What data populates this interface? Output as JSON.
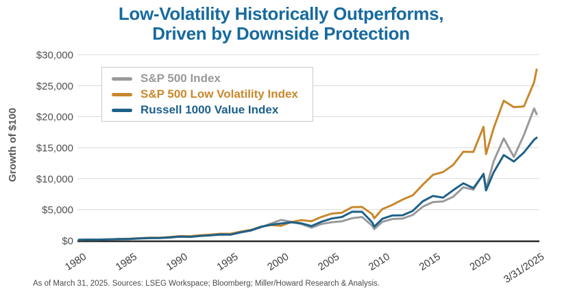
{
  "title": {
    "line1": "Low-Volatility Historically Outperforms,",
    "line2": "Driven by Downside Protection"
  },
  "footnote": "As of March 31, 2025. Sources: LSEG Workspace; Bloomberg; Miller/Howard Research & Analysis.",
  "colors": {
    "title": "#176a9f",
    "axis_line": "#29292b",
    "gridline": "#d9dadb",
    "y_tick_label": "#4e4f51",
    "x_tick_label": "#3c3c3e"
  },
  "chart_data": {
    "type": "line",
    "title": "Low-Volatility Historically Outperforms, Driven by Downside Protection",
    "xlabel": "",
    "ylabel": "Growth of $100",
    "xlim": [
      1980,
      2025.25
    ],
    "ylim": [
      0,
      30000
    ],
    "grid": "horizontal",
    "legend_position": "top-left-inside",
    "y_ticks": [
      {
        "label": "$0",
        "value": 0
      },
      {
        "label": "$5,000",
        "value": 5000
      },
      {
        "label": "$10,000",
        "value": 10000
      },
      {
        "label": "$15,000",
        "value": 15000
      },
      {
        "label": "$20,000",
        "value": 20000
      },
      {
        "label": "$25,000",
        "value": 25000
      },
      {
        "label": "$30,000",
        "value": 30000
      }
    ],
    "x_ticks": [
      {
        "label": "1980",
        "x": 1980
      },
      {
        "label": "1985",
        "x": 1985
      },
      {
        "label": "1990",
        "x": 1990
      },
      {
        "label": "1995",
        "x": 1995
      },
      {
        "label": "2000",
        "x": 2000
      },
      {
        "label": "2005",
        "x": 2005
      },
      {
        "label": "2010",
        "x": 2010
      },
      {
        "label": "2015",
        "x": 2015
      },
      {
        "label": "2020",
        "x": 2020
      },
      {
        "label": "3/31/2025",
        "x": 2025.25
      }
    ],
    "x": [
      1980,
      1981,
      1982,
      1983,
      1984,
      1985,
      1986,
      1987,
      1988,
      1989,
      1990,
      1991,
      1992,
      1993,
      1994,
      1995,
      1996,
      1997,
      1998,
      1999,
      2000,
      2001,
      2002,
      2003,
      2004,
      2005,
      2006,
      2007,
      2008,
      2009,
      2009.2,
      2010,
      2011,
      2012,
      2013,
      2014,
      2015,
      2016,
      2017,
      2018,
      2019,
      2020,
      2020.25,
      2021,
      2022,
      2023,
      2024,
      2025,
      2025.25
    ],
    "series": [
      {
        "name": "S&P 500 Index",
        "color": "#97999b",
        "end_value": 20400,
        "values": [
          124,
          164,
          156,
          190,
          233,
          247,
          326,
          387,
          407,
          475,
          625,
          606,
          791,
          851,
          937,
          949,
          1306,
          1606,
          2143,
          2755,
          3334,
          3031,
          2670,
          2080,
          2677,
          2969,
          3115,
          3607,
          3805,
          2397,
          1850,
          3032,
          3490,
          3563,
          4133,
          5472,
          6222,
          6310,
          7067,
          8607,
          8228,
          10820,
          8400,
          12810,
          16486,
          13502,
          17053,
          21317,
          20400
        ]
      },
      {
        "name": "S&P 500 Low Volatility Index",
        "color": "#c8872b",
        "end_value": 27600,
        "values": [
          130,
          162,
          170,
          209,
          263,
          295,
          383,
          463,
          477,
          573,
          733,
          711,
          868,
          955,
          1098,
          1104,
          1458,
          1720,
          2236,
          2504,
          2379,
          2998,
          3298,
          3133,
          3822,
          4357,
          4505,
          5392,
          5430,
          4268,
          3600,
          5087,
          5768,
          6621,
          7303,
          9027,
          10607,
          11063,
          12213,
          14338,
          14309,
          18358,
          13950,
          18156,
          22567,
          21529,
          21658,
          25556,
          27600
        ]
      },
      {
        "name": "Russell 1000 Value Index",
        "color": "#1d6089",
        "end_value": 16600,
        "values": [
          124,
          155,
          157,
          188,
          241,
          265,
          348,
          418,
          420,
          517,
          647,
          595,
          741,
          842,
          995,
          975,
          1350,
          1641,
          2219,
          2565,
          2752,
          2945,
          2780,
          2349,
          3053,
          3557,
          3810,
          4656,
          4647,
          2937,
          2250,
          3515,
          4060,
          4076,
          4789,
          6345,
          7202,
          6928,
          8126,
          9239,
          8472,
          10717,
          8100,
          11017,
          13793,
          12759,
          14226,
          16275,
          16600
        ]
      }
    ]
  }
}
